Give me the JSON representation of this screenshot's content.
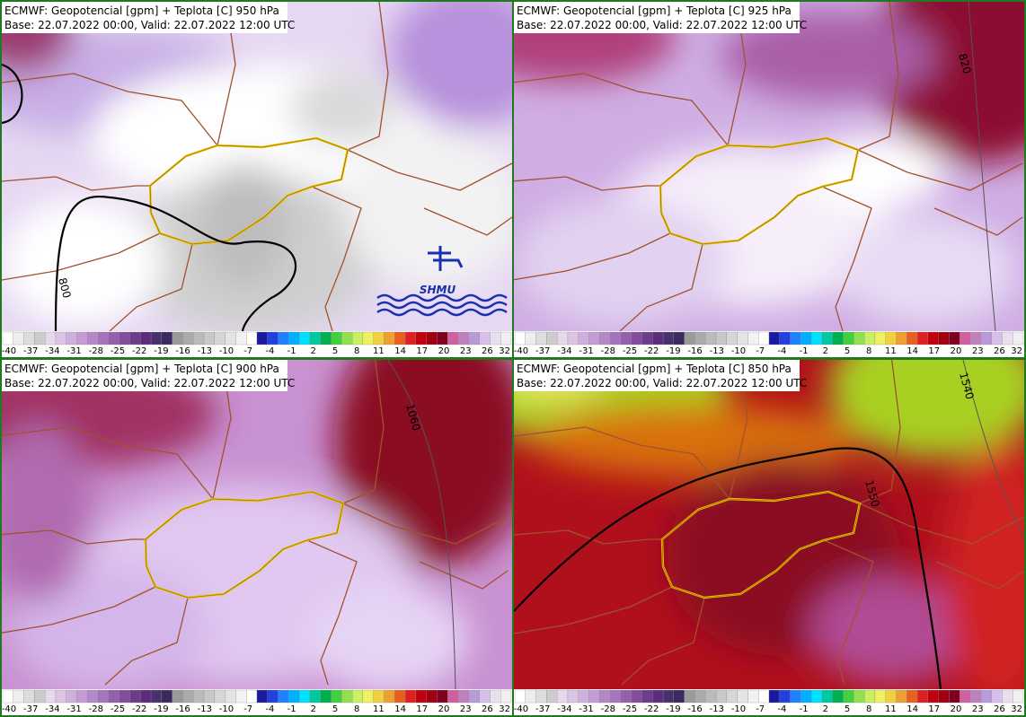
{
  "panels": [
    {
      "title": "ECMWF: Geopotencial [gpm] + Teplota [C] 950 hPa",
      "subtitle": "Base: 22.07.2022 00:00, Valid: 22.07.2022 12:00 UTC",
      "contour_labels": [
        "800"
      ],
      "logo": "SHMU"
    },
    {
      "title": "ECMWF: Geopotencial [gpm] + Teplota [C] 925 hPa",
      "subtitle": "Base: 22.07.2022 00:00, Valid: 22.07.2022 12:00 UTC",
      "contour_labels": [
        "820"
      ]
    },
    {
      "title": "ECMWF: Geopotencial [gpm] + Teplota [C] 900 hPa",
      "subtitle": "Base: 22.07.2022 00:00, Valid: 22.07.2022 12:00 UTC",
      "contour_labels": [
        "1060"
      ]
    },
    {
      "title": "ECMWF: Geopotencial [gpm] + Teplota [C] 850 hPa",
      "subtitle": "Base: 22.07.2022 00:00, Valid: 22.07.2022 12:00 UTC",
      "contour_labels": [
        "1540",
        "1550"
      ]
    }
  ],
  "colorbar": {
    "labels": [
      "-40",
      "-37",
      "-34",
      "-31",
      "-28",
      "-25",
      "-22",
      "-19",
      "-16",
      "-13",
      "-10",
      "-7",
      "-4",
      "-1",
      "2",
      "5",
      "8",
      "11",
      "14",
      "17",
      "20",
      "23",
      "26",
      "32"
    ],
    "colors": [
      "#ffffff",
      "#eeeeee",
      "#dddddd",
      "#cccccc",
      "#e8d8ec",
      "#dcc4e4",
      "#cfb0dc",
      "#c39cd4",
      "#b488c8",
      "#a474bc",
      "#9460ac",
      "#844c9c",
      "#6e3c8c",
      "#5c2c7c",
      "#46306e",
      "#3a2a60",
      "#9a9a9a",
      "#aaaaaa",
      "#bbbbbb",
      "#c8c8c8",
      "#d6d6d6",
      "#e4e4e4",
      "#f2f2f2",
      "#ffffff",
      "#1a1aa0",
      "#2040e0",
      "#2080ff",
      "#00b0ff",
      "#00e0ff",
      "#00c8a0",
      "#00b050",
      "#40d040",
      "#90e050",
      "#c8f060",
      "#f0f060",
      "#f0d040",
      "#f0a030",
      "#e86020",
      "#e02020",
      "#c00010",
      "#a00010",
      "#800020",
      "#d060a0",
      "#c080c0",
      "#b89ad8",
      "#d8c0ec",
      "#e8e0f0",
      "#f0f0f0"
    ]
  }
}
